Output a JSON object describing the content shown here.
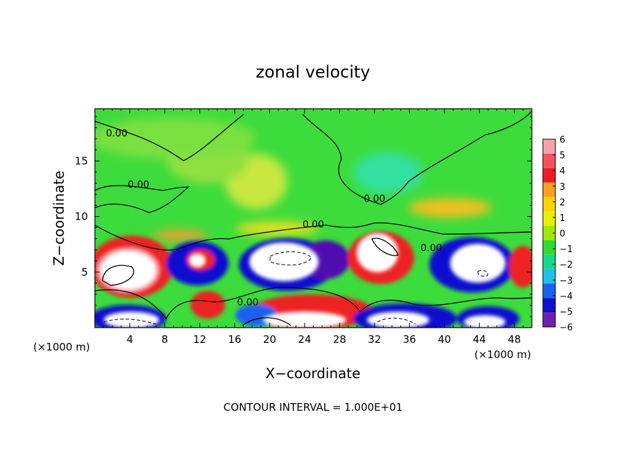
{
  "chart_data": {
    "type": "heatmap",
    "title": "zonal velocity",
    "xlabel": "X−coordinate",
    "ylabel": "Z−coordinate",
    "x_unit_left": "(×1000 m)",
    "x_unit_right": "(×1000 m)",
    "footer": "CONTOUR INTERVAL = 1.000E+01",
    "xlim": [
      0,
      50
    ],
    "ylim": [
      0,
      19.7
    ],
    "x_ticks": [
      4,
      8,
      12,
      16,
      20,
      24,
      28,
      32,
      36,
      40,
      44,
      48
    ],
    "y_ticks": [
      5,
      10,
      15
    ],
    "colorbar": {
      "min": -6,
      "max": 6,
      "labels": [
        "6",
        "5",
        "4",
        "3",
        "2",
        "1",
        "0",
        "−1",
        "−2",
        "−3",
        "−4",
        "−5",
        "−6"
      ],
      "colors": [
        "#f5a3a8",
        "#f55060",
        "#ee1c25",
        "#f8a020",
        "#f8d400",
        "#e6f000",
        "#a0e800",
        "#30dc30",
        "#18d890",
        "#20c0e8",
        "#1c60f0",
        "#1010d0",
        "#7020b0"
      ]
    },
    "contour_labels": [
      {
        "text": "0.00",
        "x": 2.5,
        "y": 17.2
      },
      {
        "text": "0.00",
        "x": 5,
        "y": 12.6
      },
      {
        "text": "0.00",
        "x": 32,
        "y": 11.3
      },
      {
        "text": "0.00",
        "x": 25,
        "y": 9
      },
      {
        "text": "0.00",
        "x": 17.5,
        "y": 2
      },
      {
        "text": "0.00",
        "x": 38.5,
        "y": 6.9
      }
    ],
    "features": [
      {
        "kind": "positive-max",
        "x": 3.5,
        "y": 6
      },
      {
        "kind": "positive-max",
        "x": 33,
        "y": 6.7
      },
      {
        "kind": "positive-max",
        "x": 24.5,
        "y": 0.8
      },
      {
        "kind": "negative-min",
        "x": 20,
        "y": 5.4
      },
      {
        "kind": "negative-min",
        "x": 43.5,
        "y": 5.4
      },
      {
        "kind": "negative-min",
        "x": 5,
        "y": 0.5
      },
      {
        "kind": "negative-min",
        "x": 44,
        "y": 0.5
      }
    ]
  }
}
